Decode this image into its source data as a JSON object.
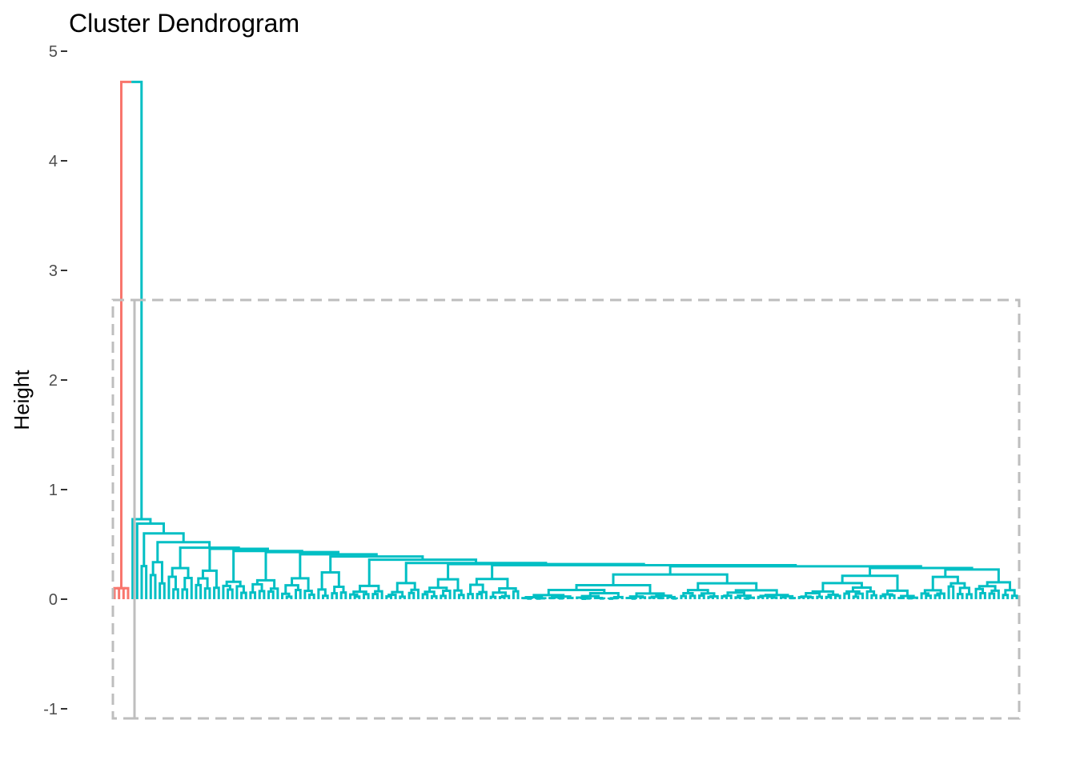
{
  "chart_data": {
    "type": "dendrogram",
    "title": "Cluster Dendrogram",
    "xlabel": "",
    "ylabel": "Height",
    "ylim": [
      -1,
      5
    ],
    "y_ticks": [
      {
        "value": 5,
        "label": "5"
      },
      {
        "value": 4,
        "label": "4"
      },
      {
        "value": 3,
        "label": "3"
      },
      {
        "value": 2,
        "label": "2"
      },
      {
        "value": 1,
        "label": "1"
      },
      {
        "value": 0,
        "label": "0"
      },
      {
        "value": -1,
        "label": "-1"
      }
    ],
    "grid": false,
    "legend": "none",
    "n_leaves": 200,
    "root_height": 4.72,
    "cut_height": 2.73,
    "clusters": [
      {
        "cluster": 1,
        "color": "#F8766D",
        "leaves": 4,
        "merge_height": 4.72,
        "subtree_height": 0.1
      },
      {
        "cluster": 2,
        "color": "#00BFC4",
        "leaves": 196,
        "merge_height": 4.72,
        "subtree_height": 0.73
      }
    ],
    "rect_border_color": "#BEBEBE"
  }
}
